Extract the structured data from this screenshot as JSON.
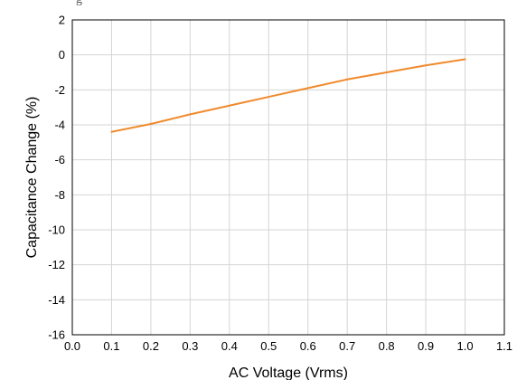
{
  "header": {
    "title_fragment": "g"
  },
  "chart_data": {
    "type": "line",
    "title": "",
    "xlabel": "AC Voltage (Vrms)",
    "ylabel": "Capacitance Change (%)",
    "xlim": [
      0.0,
      1.1
    ],
    "ylim": [
      -16,
      2
    ],
    "x_ticks": [
      "0.0",
      "0.1",
      "0.2",
      "0.3",
      "0.4",
      "0.5",
      "0.6",
      "0.7",
      "0.8",
      "0.9",
      "1.0",
      "1.1"
    ],
    "y_ticks": [
      "2",
      "0",
      "-2",
      "-4",
      "-6",
      "-8",
      "-10",
      "-12",
      "-14",
      "-16"
    ],
    "grid": true,
    "series": [
      {
        "color": "#f08a2c",
        "x": [
          0.1,
          0.2,
          0.3,
          0.4,
          0.5,
          0.6,
          0.7,
          0.8,
          0.9,
          1.0
        ],
        "y": [
          -4.4,
          -3.95,
          -3.4,
          -2.9,
          -2.4,
          -1.9,
          -1.4,
          -1.0,
          -0.6,
          -0.25
        ]
      }
    ]
  }
}
